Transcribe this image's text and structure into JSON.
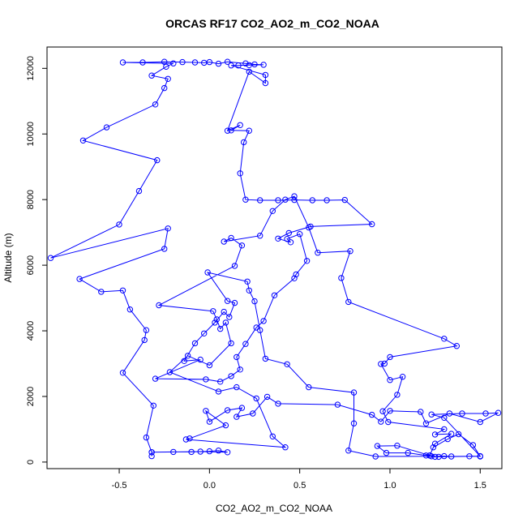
{
  "chart_data": {
    "type": "line",
    "title": "ORCAS RF17 CO2_AO2_m_CO2_NOAA",
    "xlabel": "CO2_AO2_m_CO2_NOAA",
    "ylabel": "Altitude (m)",
    "xlim": [
      -0.9,
      1.62
    ],
    "ylim": [
      -200,
      12650
    ],
    "xticks": [
      -0.5,
      0.0,
      0.5,
      1.0,
      1.5
    ],
    "xtick_labels": [
      "-0.5",
      "0.0",
      "0.5",
      "1.0",
      "1.5"
    ],
    "yticks": [
      0,
      2000,
      4000,
      6000,
      8000,
      10000,
      12000
    ],
    "ytick_labels": [
      "0",
      "2000",
      "4000",
      "6000",
      "8000",
      "10000",
      "12000"
    ],
    "grid": false,
    "line_color": "#0000ff",
    "marker": "open-circle",
    "series": [
      {
        "points": [
          [
            -0.32,
            180
          ],
          [
            -0.32,
            300
          ],
          [
            -0.2,
            310
          ],
          [
            -0.1,
            310
          ],
          [
            0.0,
            330
          ],
          [
            0.05,
            350
          ],
          [
            0.1,
            300
          ],
          [
            -0.05,
            320
          ],
          [
            -0.32,
            300
          ],
          [
            -0.35,
            750
          ],
          [
            -0.31,
            1720
          ],
          [
            -0.48,
            2720
          ],
          [
            -0.36,
            3720
          ],
          [
            -0.35,
            4020
          ],
          [
            -0.44,
            4650
          ],
          [
            -0.48,
            5230
          ],
          [
            -0.6,
            5190
          ],
          [
            -0.72,
            5580
          ],
          [
            -0.25,
            6500
          ],
          [
            -0.23,
            7120
          ],
          [
            -0.88,
            6220
          ],
          [
            -0.5,
            7240
          ],
          [
            -0.39,
            8260
          ],
          [
            -0.29,
            9200
          ],
          [
            -0.7,
            9800
          ],
          [
            -0.57,
            10200
          ],
          [
            -0.3,
            10900
          ],
          [
            -0.25,
            11400
          ],
          [
            -0.23,
            11680
          ],
          [
            -0.32,
            11780
          ],
          [
            -0.24,
            12050
          ],
          [
            -0.2,
            12150
          ],
          [
            -0.48,
            12180
          ],
          [
            -0.37,
            12180
          ],
          [
            -0.25,
            12200
          ],
          [
            -0.15,
            12190
          ],
          [
            -0.08,
            12180
          ],
          [
            -0.03,
            12170
          ],
          [
            0.0,
            12190
          ],
          [
            0.05,
            12140
          ],
          [
            0.1,
            12200
          ],
          [
            0.2,
            12150
          ],
          [
            0.25,
            12120
          ],
          [
            0.3,
            12110
          ],
          [
            0.22,
            12100
          ],
          [
            0.16,
            12090
          ],
          [
            0.12,
            12090
          ],
          [
            0.31,
            11800
          ],
          [
            0.31,
            11550
          ],
          [
            0.22,
            11900
          ],
          [
            0.1,
            10100
          ],
          [
            0.17,
            10270
          ],
          [
            0.12,
            10110
          ],
          [
            0.22,
            10100
          ],
          [
            0.19,
            9750
          ],
          [
            0.17,
            8800
          ],
          [
            0.2,
            8000
          ],
          [
            0.28,
            7980
          ],
          [
            0.38,
            7980
          ],
          [
            0.47,
            7990
          ],
          [
            0.57,
            7980
          ],
          [
            0.65,
            7980
          ],
          [
            0.75,
            7990
          ],
          [
            0.9,
            7250
          ],
          [
            0.56,
            7180
          ],
          [
            0.44,
            6980
          ],
          [
            0.38,
            6810
          ],
          [
            0.45,
            6700
          ],
          [
            0.43,
            6800
          ],
          [
            0.5,
            6950
          ],
          [
            0.54,
            6130
          ],
          [
            0.48,
            5720
          ],
          [
            0.47,
            5600
          ],
          [
            0.36,
            5080
          ],
          [
            0.3,
            4300
          ],
          [
            0.26,
            4100
          ],
          [
            0.2,
            3600
          ],
          [
            0.15,
            3200
          ],
          [
            0.17,
            2820
          ],
          [
            0.12,
            2620
          ],
          [
            0.06,
            2450
          ],
          [
            -0.02,
            2520
          ],
          [
            -0.3,
            2540
          ],
          [
            -0.05,
            3120
          ],
          [
            -0.14,
            3080
          ],
          [
            -0.08,
            3620
          ],
          [
            -0.03,
            3920
          ],
          [
            0.03,
            4250
          ],
          [
            0.08,
            4580
          ],
          [
            0.11,
            4420
          ],
          [
            0.14,
            4850
          ],
          [
            0.1,
            4910
          ],
          [
            -0.01,
            5780
          ],
          [
            0.21,
            5500
          ],
          [
            0.22,
            5230
          ],
          [
            0.25,
            4900
          ],
          [
            0.28,
            4020
          ],
          [
            0.31,
            3150
          ],
          [
            0.43,
            2980
          ],
          [
            0.55,
            2280
          ],
          [
            0.8,
            2120
          ],
          [
            0.8,
            1180
          ],
          [
            0.77,
            350
          ],
          [
            0.92,
            170
          ],
          [
            1.23,
            175
          ],
          [
            1.3,
            180
          ],
          [
            1.34,
            170
          ],
          [
            1.44,
            175
          ],
          [
            1.5,
            170
          ],
          [
            1.46,
            520
          ],
          [
            1.38,
            850
          ],
          [
            1.32,
            700
          ],
          [
            1.24,
            450
          ],
          [
            1.22,
            200
          ],
          [
            1.27,
            160
          ],
          [
            1.5,
            180
          ],
          [
            1.3,
            1350
          ],
          [
            1.23,
            1450
          ],
          [
            1.4,
            1480
          ],
          [
            1.53,
            1480
          ],
          [
            1.6,
            1500
          ],
          [
            1.5,
            1220
          ],
          [
            1.33,
            1480
          ],
          [
            1.2,
            1180
          ],
          [
            1.17,
            1530
          ],
          [
            1.0,
            1560
          ],
          [
            0.95,
            1230
          ],
          [
            0.9,
            1440
          ],
          [
            0.71,
            1750
          ],
          [
            0.38,
            1780
          ],
          [
            0.32,
            1990
          ],
          [
            0.24,
            1480
          ],
          [
            0.15,
            1380
          ],
          [
            0.18,
            1650
          ],
          [
            0.1,
            1580
          ],
          [
            0.0,
            1230
          ],
          [
            -0.02,
            1560
          ],
          [
            0.09,
            1120
          ],
          [
            -0.11,
            720
          ],
          [
            -0.13,
            690
          ],
          [
            0.42,
            450
          ],
          [
            0.35,
            780
          ],
          [
            0.26,
            1940
          ],
          [
            0.15,
            2280
          ],
          [
            0.05,
            2150
          ],
          [
            -0.22,
            2740
          ],
          [
            -0.12,
            3240
          ],
          [
            0.0,
            2950
          ],
          [
            0.12,
            3620
          ],
          [
            0.09,
            4250
          ],
          [
            0.06,
            4060
          ],
          [
            0.04,
            4350
          ],
          [
            0.02,
            4600
          ],
          [
            -0.28,
            4780
          ],
          [
            0.14,
            5980
          ],
          [
            0.18,
            6600
          ],
          [
            0.12,
            6830
          ],
          [
            0.08,
            6720
          ],
          [
            0.28,
            6900
          ],
          [
            0.35,
            7650
          ],
          [
            0.42,
            8000
          ],
          [
            0.47,
            8100
          ],
          [
            0.55,
            7150
          ],
          [
            0.6,
            6380
          ],
          [
            0.78,
            6430
          ],
          [
            0.73,
            5610
          ],
          [
            0.77,
            4880
          ],
          [
            1.3,
            3760
          ],
          [
            1.37,
            3540
          ],
          [
            1.0,
            3200
          ],
          [
            0.97,
            3000
          ],
          [
            0.95,
            2990
          ],
          [
            1.0,
            2500
          ],
          [
            1.07,
            2600
          ],
          [
            1.04,
            2050
          ],
          [
            0.96,
            1550
          ],
          [
            0.99,
            1220
          ],
          [
            1.3,
            1000
          ],
          [
            1.25,
            840
          ],
          [
            1.34,
            860
          ],
          [
            1.25,
            560
          ],
          [
            1.22,
            200
          ],
          [
            1.04,
            500
          ],
          [
            0.93,
            490
          ],
          [
            0.98,
            280
          ],
          [
            1.1,
            280
          ],
          [
            1.2,
            200
          ],
          [
            1.25,
            160
          ]
        ]
      }
    ]
  }
}
